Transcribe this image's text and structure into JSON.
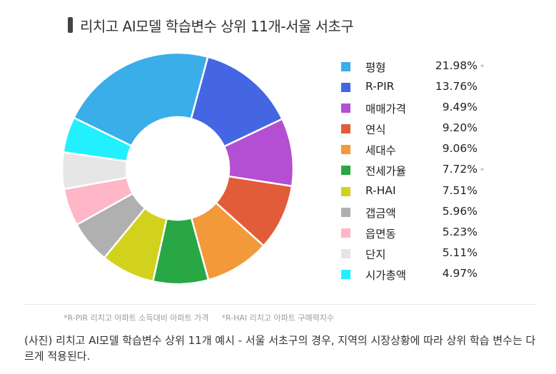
{
  "title": "리치고 AI모델 학습변수 상위 11개-서울 서초구",
  "chart_data": {
    "type": "pie",
    "title": "리치고 AI모델 학습변수 상위 11개-서울 서초구",
    "categories": [
      "평형",
      "R-PIR",
      "매매가격",
      "연식",
      "세대수",
      "전세가율",
      "R-HAI",
      "갭금액",
      "읍면동",
      "단지",
      "시가총액"
    ],
    "values": [
      21.98,
      13.76,
      9.49,
      9.2,
      9.06,
      7.72,
      7.51,
      5.96,
      5.23,
      5.11,
      4.97
    ],
    "value_labels": [
      "21.98%",
      "13.76%",
      "9.49%",
      "9.20%",
      "9.06%",
      "7.72%",
      "7.51%",
      "5.96%",
      "5.23%",
      "5.11%",
      "4.97%"
    ],
    "colors": [
      "#3aaee8",
      "#4466e3",
      "#b44ed2",
      "#e25c3a",
      "#f2993a",
      "#28a744",
      "#d2d21e",
      "#b0b0b0",
      "#ffb6c6",
      "#e6e6e6",
      "#22f0ff"
    ],
    "starred": [
      true,
      false,
      false,
      false,
      false,
      true,
      false,
      false,
      false,
      false,
      false
    ],
    "legend_position": "right"
  },
  "footnotes": [
    "*R-PIR 리치고 아파트 소득대비 아파트 가격",
    "*R-HAI 리치고 아파트 구매력지수"
  ],
  "star_mark": "*",
  "caption": "(사진) 리치고 AI모델 학습변수 상위 11개 예시 - 서울 서초구의 경우, 지역의 시장상황에 따라 상위 학습 변수는 다르게 적용된다."
}
